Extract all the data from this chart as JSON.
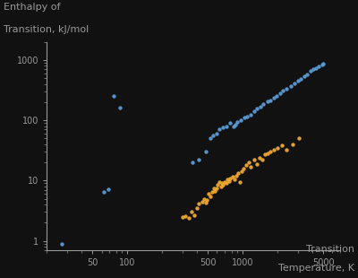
{
  "background_color": "#111111",
  "text_color": "#999999",
  "blue_color": "#5b9bd5",
  "orange_color": "#f0a832",
  "title_lines": [
    "Enthalpy of",
    "Transition, kJ/mol"
  ],
  "xlabel_lines": [
    "Transition",
    "Temperature, K"
  ],
  "xlim": [
    20,
    7000
  ],
  "ylim": [
    0.7,
    2000
  ],
  "blue_points": [
    [
      27,
      0.9
    ],
    [
      63,
      6.5
    ],
    [
      68,
      7.2
    ],
    [
      77,
      250
    ],
    [
      87,
      160
    ],
    [
      370,
      20
    ],
    [
      420,
      22
    ],
    [
      480,
      30
    ],
    [
      530,
      50
    ],
    [
      550,
      55
    ],
    [
      600,
      60
    ],
    [
      630,
      70
    ],
    [
      680,
      75
    ],
    [
      720,
      80
    ],
    [
      780,
      90
    ],
    [
      830,
      80
    ],
    [
      860,
      85
    ],
    [
      900,
      95
    ],
    [
      970,
      100
    ],
    [
      1030,
      110
    ],
    [
      1100,
      115
    ],
    [
      1180,
      125
    ],
    [
      1250,
      140
    ],
    [
      1330,
      155
    ],
    [
      1420,
      170
    ],
    [
      1520,
      185
    ],
    [
      1650,
      205
    ],
    [
      1750,
      215
    ],
    [
      1880,
      235
    ],
    [
      1980,
      255
    ],
    [
      2100,
      275
    ],
    [
      2250,
      310
    ],
    [
      2400,
      330
    ],
    [
      2600,
      370
    ],
    [
      2800,
      410
    ],
    [
      3000,
      450
    ],
    [
      3200,
      490
    ],
    [
      3400,
      530
    ],
    [
      3600,
      570
    ],
    [
      3900,
      650
    ],
    [
      4100,
      700
    ],
    [
      4300,
      730
    ],
    [
      4600,
      790
    ],
    [
      4900,
      840
    ],
    [
      5000,
      870
    ]
  ],
  "orange_points": [
    [
      300,
      2.5
    ],
    [
      320,
      2.6
    ],
    [
      340,
      2.4
    ],
    [
      360,
      3.0
    ],
    [
      380,
      2.7
    ],
    [
      400,
      3.5
    ],
    [
      420,
      4.2
    ],
    [
      450,
      4.5
    ],
    [
      460,
      5.0
    ],
    [
      480,
      4.3
    ],
    [
      490,
      4.8
    ],
    [
      510,
      6.0
    ],
    [
      530,
      5.5
    ],
    [
      540,
      6.5
    ],
    [
      560,
      7.5
    ],
    [
      570,
      6.8
    ],
    [
      590,
      7.5
    ],
    [
      610,
      8.5
    ],
    [
      630,
      9.5
    ],
    [
      650,
      8.0
    ],
    [
      660,
      9.0
    ],
    [
      680,
      8.5
    ],
    [
      700,
      9.5
    ],
    [
      720,
      9.2
    ],
    [
      740,
      10.5
    ],
    [
      760,
      9.8
    ],
    [
      780,
      11.0
    ],
    [
      820,
      11.5
    ],
    [
      850,
      10.5
    ],
    [
      880,
      12.0
    ],
    [
      910,
      13.5
    ],
    [
      950,
      9.5
    ],
    [
      980,
      14.0
    ],
    [
      1020,
      15.5
    ],
    [
      1070,
      18.0
    ],
    [
      1130,
      20.0
    ],
    [
      1180,
      17.0
    ],
    [
      1250,
      22.0
    ],
    [
      1330,
      18.5
    ],
    [
      1400,
      24.0
    ],
    [
      1480,
      22.0
    ],
    [
      1560,
      27.0
    ],
    [
      1650,
      28.0
    ],
    [
      1750,
      30.0
    ],
    [
      1880,
      32.0
    ],
    [
      2000,
      35.0
    ],
    [
      2200,
      38.0
    ],
    [
      2400,
      32.0
    ],
    [
      2700,
      40.0
    ],
    [
      3100,
      50.0
    ]
  ]
}
